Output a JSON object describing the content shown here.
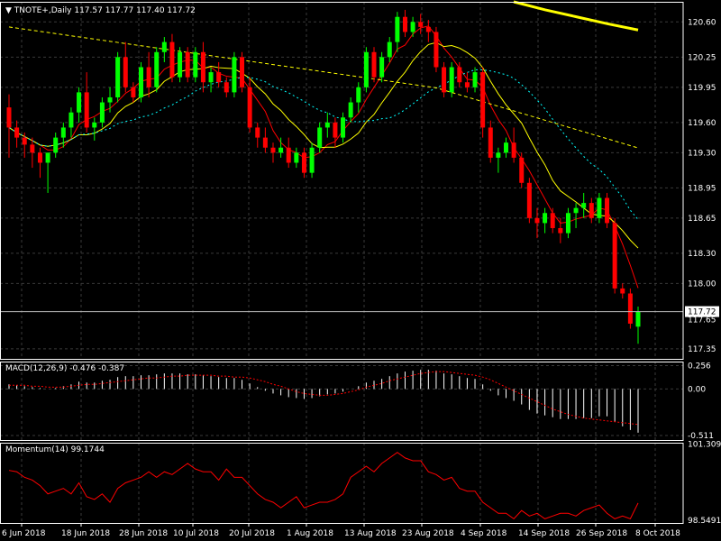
{
  "chart_data": [
    {
      "type": "candlestick",
      "symbol_line": "TNOTE+,Daily",
      "ohlc_line": "117.57 117.77 117.40 117.72",
      "current_price_label": "117.72",
      "extra_price_label": "117.65",
      "ylim": [
        117.25,
        120.8
      ],
      "y_ticks": [
        "120.60",
        "120.25",
        "119.95",
        "119.60",
        "119.30",
        "118.95",
        "118.65",
        "118.30",
        "118.00",
        "117.35"
      ],
      "x_ticks": [
        "6 Jun 2018",
        "18 Jun 2018",
        "28 Jun 2018",
        "10 Jul 2018",
        "20 Jul 2018",
        "1 Aug 2018",
        "13 Aug 2018",
        "23 Aug 2018",
        "4 Sep 2018",
        "14 Sep 2018",
        "26 Sep 2018",
        "8 Oct 2018"
      ],
      "candles": [
        [
          119.75,
          119.88,
          119.25,
          119.55
        ],
        [
          119.55,
          119.62,
          119.35,
          119.45
        ],
        [
          119.45,
          119.5,
          119.25,
          119.38
        ],
        [
          119.38,
          119.45,
          119.15,
          119.3
        ],
        [
          119.3,
          119.35,
          119.05,
          119.2
        ],
        [
          119.2,
          119.3,
          118.9,
          119.3
        ],
        [
          119.3,
          119.5,
          119.25,
          119.45
        ],
        [
          119.45,
          119.6,
          119.35,
          119.55
        ],
        [
          119.55,
          119.75,
          119.45,
          119.7
        ],
        [
          119.7,
          119.95,
          119.6,
          119.9
        ],
        [
          119.9,
          120.1,
          119.5,
          119.55
        ],
        [
          119.55,
          119.65,
          119.42,
          119.6
        ],
        [
          119.6,
          119.85,
          119.55,
          119.8
        ],
        [
          119.8,
          119.95,
          119.7,
          119.85
        ],
        [
          119.85,
          120.3,
          119.8,
          120.25
        ],
        [
          120.25,
          120.4,
          119.9,
          119.95
        ],
        [
          119.95,
          120.0,
          119.8,
          119.85
        ],
        [
          119.85,
          120.2,
          119.8,
          120.15
        ],
        [
          120.15,
          120.3,
          119.85,
          119.95
        ],
        [
          119.95,
          120.35,
          119.9,
          120.3
        ],
        [
          120.3,
          120.45,
          120.2,
          120.4
        ],
        [
          120.4,
          120.48,
          120.0,
          120.05
        ],
        [
          120.05,
          120.35,
          120.0,
          120.3
        ],
        [
          120.3,
          120.35,
          120.0,
          120.05
        ],
        [
          120.05,
          120.35,
          120.0,
          120.3
        ],
        [
          120.3,
          120.4,
          119.9,
          120.0
        ],
        [
          120.0,
          120.15,
          119.9,
          120.1
        ],
        [
          120.1,
          120.2,
          119.95,
          120.0
        ],
        [
          120.0,
          120.05,
          119.85,
          119.9
        ],
        [
          119.9,
          120.3,
          119.85,
          120.25
        ],
        [
          120.25,
          120.3,
          119.9,
          119.95
        ],
        [
          119.95,
          120.05,
          119.5,
          119.55
        ],
        [
          119.55,
          119.6,
          119.35,
          119.45
        ],
        [
          119.45,
          119.55,
          119.3,
          119.35
        ],
        [
          119.35,
          119.4,
          119.2,
          119.3
        ],
        [
          119.3,
          119.45,
          119.25,
          119.35
        ],
        [
          119.35,
          119.45,
          119.15,
          119.2
        ],
        [
          119.2,
          119.35,
          119.15,
          119.3
        ],
        [
          119.3,
          119.35,
          119.05,
          119.1
        ],
        [
          119.1,
          119.4,
          119.05,
          119.35
        ],
        [
          119.35,
          119.6,
          119.3,
          119.55
        ],
        [
          119.55,
          119.7,
          119.45,
          119.6
        ],
        [
          119.6,
          119.65,
          119.35,
          119.45
        ],
        [
          119.45,
          119.7,
          119.4,
          119.65
        ],
        [
          119.65,
          119.85,
          119.6,
          119.8
        ],
        [
          119.8,
          120.0,
          119.7,
          119.95
        ],
        [
          119.95,
          120.35,
          119.9,
          120.3
        ],
        [
          120.3,
          120.35,
          120.0,
          120.05
        ],
        [
          120.05,
          120.3,
          120.0,
          120.25
        ],
        [
          120.25,
          120.45,
          120.2,
          120.4
        ],
        [
          120.4,
          120.7,
          120.3,
          120.65
        ],
        [
          120.65,
          120.72,
          120.45,
          120.5
        ],
        [
          120.5,
          120.65,
          120.45,
          120.6
        ],
        [
          120.6,
          120.68,
          120.48,
          120.55
        ],
        [
          120.55,
          120.62,
          120.4,
          120.5
        ],
        [
          120.5,
          120.55,
          120.1,
          120.15
        ],
        [
          120.15,
          120.2,
          119.85,
          119.9
        ],
        [
          119.9,
          120.2,
          119.85,
          120.15
        ],
        [
          120.15,
          120.2,
          119.95,
          120.0
        ],
        [
          120.0,
          120.1,
          119.9,
          119.95
        ],
        [
          119.95,
          120.15,
          119.9,
          120.1
        ],
        [
          120.1,
          120.15,
          119.45,
          119.55
        ],
        [
          119.55,
          119.62,
          119.2,
          119.25
        ],
        [
          119.25,
          119.35,
          119.1,
          119.3
        ],
        [
          119.3,
          119.45,
          119.25,
          119.4
        ],
        [
          119.4,
          119.55,
          119.2,
          119.25
        ],
        [
          119.25,
          119.3,
          118.95,
          119.0
        ],
        [
          119.0,
          119.05,
          118.6,
          118.65
        ],
        [
          118.65,
          118.75,
          118.45,
          118.6
        ],
        [
          118.6,
          118.75,
          118.5,
          118.7
        ],
        [
          118.7,
          118.75,
          118.5,
          118.55
        ],
        [
          118.55,
          118.65,
          118.4,
          118.5
        ],
        [
          118.5,
          118.75,
          118.45,
          118.7
        ],
        [
          118.7,
          118.8,
          118.55,
          118.75
        ],
        [
          118.75,
          118.9,
          118.65,
          118.8
        ],
        [
          118.8,
          118.85,
          118.6,
          118.65
        ],
        [
          118.65,
          118.9,
          118.6,
          118.85
        ],
        [
          118.85,
          118.9,
          118.55,
          118.6
        ],
        [
          118.6,
          118.65,
          117.9,
          117.95
        ],
        [
          117.95,
          118.0,
          117.85,
          117.9
        ],
        [
          117.9,
          117.95,
          117.55,
          117.6
        ],
        [
          117.57,
          117.77,
          117.4,
          117.72
        ]
      ],
      "macd": {
        "label": "MACD(12,26,9) -0.476 -0.387",
        "ylim": [
          -0.56,
          0.3
        ],
        "y_ticks": [
          "0.256",
          "0.00",
          "-0.511"
        ],
        "histogram": [
          0.05,
          0.04,
          0.03,
          0.02,
          0.01,
          0.0,
          0.01,
          0.03,
          0.05,
          0.08,
          0.07,
          0.07,
          0.09,
          0.1,
          0.13,
          0.14,
          0.14,
          0.15,
          0.15,
          0.16,
          0.17,
          0.17,
          0.17,
          0.16,
          0.16,
          0.15,
          0.14,
          0.13,
          0.12,
          0.12,
          0.1,
          0.06,
          0.02,
          -0.02,
          -0.05,
          -0.07,
          -0.09,
          -0.1,
          -0.11,
          -0.1,
          -0.08,
          -0.06,
          -0.05,
          -0.03,
          0.0,
          0.03,
          0.07,
          0.09,
          0.11,
          0.14,
          0.17,
          0.19,
          0.2,
          0.21,
          0.21,
          0.2,
          0.17,
          0.16,
          0.14,
          0.12,
          0.11,
          0.05,
          -0.02,
          -0.07,
          -0.1,
          -0.13,
          -0.17,
          -0.23,
          -0.27,
          -0.29,
          -0.31,
          -0.33,
          -0.33,
          -0.33,
          -0.32,
          -0.32,
          -0.3,
          -0.3,
          -0.36,
          -0.41,
          -0.45,
          -0.48
        ],
        "signal": [
          0.04,
          0.04,
          0.04,
          0.03,
          0.03,
          0.02,
          0.02,
          0.02,
          0.03,
          0.04,
          0.05,
          0.05,
          0.06,
          0.07,
          0.08,
          0.09,
          0.1,
          0.11,
          0.12,
          0.12,
          0.13,
          0.14,
          0.14,
          0.15,
          0.15,
          0.15,
          0.15,
          0.14,
          0.14,
          0.13,
          0.13,
          0.12,
          0.1,
          0.08,
          0.05,
          0.03,
          0.0,
          -0.03,
          -0.05,
          -0.06,
          -0.07,
          -0.07,
          -0.06,
          -0.05,
          -0.03,
          -0.01,
          0.02,
          0.04,
          0.06,
          0.09,
          0.11,
          0.13,
          0.15,
          0.17,
          0.18,
          0.19,
          0.19,
          0.18,
          0.17,
          0.16,
          0.15,
          0.13,
          0.1,
          0.06,
          0.02,
          -0.02,
          -0.06,
          -0.1,
          -0.14,
          -0.18,
          -0.22,
          -0.25,
          -0.28,
          -0.3,
          -0.32,
          -0.33,
          -0.34,
          -0.35,
          -0.36,
          -0.37,
          -0.38,
          -0.39
        ]
      },
      "momentum": {
        "label": "Momentum(14) 99.1744",
        "ylim": [
          98.45,
          101.35
        ],
        "y_ticks": [
          "101.3091",
          "98.5491"
        ],
        "values": [
          100.35,
          100.3,
          100.1,
          100.0,
          99.8,
          99.5,
          99.6,
          99.7,
          99.5,
          99.9,
          99.4,
          99.3,
          99.5,
          99.2,
          99.7,
          99.9,
          100.0,
          100.1,
          100.3,
          100.1,
          100.3,
          100.2,
          100.4,
          100.6,
          100.4,
          100.3,
          100.3,
          100.0,
          100.4,
          100.1,
          100.1,
          99.8,
          99.5,
          99.3,
          99.2,
          99.0,
          99.2,
          99.4,
          99.0,
          99.1,
          99.2,
          99.2,
          99.3,
          99.5,
          100.1,
          100.3,
          100.5,
          100.3,
          100.6,
          100.8,
          101.0,
          100.8,
          100.7,
          100.7,
          100.3,
          100.2,
          100.0,
          100.1,
          99.7,
          99.6,
          99.6,
          99.2,
          99.0,
          98.8,
          98.8,
          98.6,
          98.9,
          98.7,
          98.8,
          98.6,
          98.7,
          98.8,
          98.8,
          98.7,
          98.9,
          99.0,
          99.1,
          98.8,
          98.6,
          98.7,
          98.6,
          99.17
        ]
      },
      "ma_lines": [
        {
          "color": "#ff0000",
          "style": "solid",
          "period": 5
        },
        {
          "color": "#ffff00",
          "style": "solid",
          "period": 10
        },
        {
          "color": "#00ffff",
          "style": "dotted",
          "period": 20
        },
        {
          "color": "#ffff00",
          "style": "dashed",
          "period": 50
        }
      ],
      "long_ma_thick": {
        "color": "#ffff00",
        "values": [
          120.8,
          120.72,
          120.65,
          120.58,
          120.52
        ]
      },
      "colors": {
        "bull": "#00ff00",
        "bear": "#ff0000",
        "grid": "#3a3a3a",
        "axis": "#ffffff",
        "background": "#000000",
        "macd_hist": "#ffffff",
        "macd_signal": "#ff0000",
        "momentum": "#ff0000"
      }
    }
  ]
}
